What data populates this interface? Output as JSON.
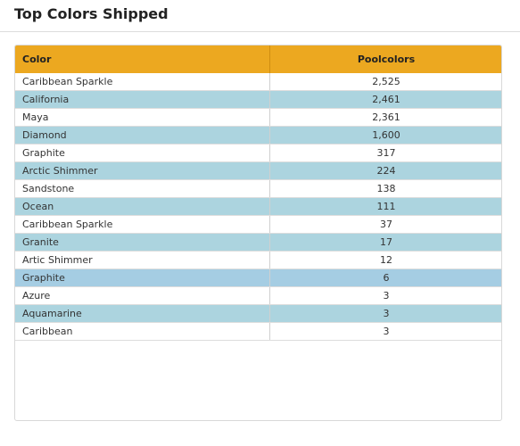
{
  "header": {
    "title": "Top Colors Shipped"
  },
  "table": {
    "columns": [
      "Color",
      "Poolcolors"
    ],
    "rows": [
      [
        "Caribbean Sparkle",
        "2,525"
      ],
      [
        "California",
        "2,461"
      ],
      [
        "Maya",
        "2,361"
      ],
      [
        "Diamond",
        "1,600"
      ],
      [
        "Graphite",
        "317"
      ],
      [
        "Arctic Shimmer",
        "224"
      ],
      [
        "Sandstone",
        "138"
      ],
      [
        "Ocean",
        "111"
      ],
      [
        "Caribbean Sparkle",
        "37"
      ],
      [
        "Granite",
        "17"
      ],
      [
        "Artic Shimmer",
        "12"
      ],
      [
        "Graphite",
        "6"
      ],
      [
        "Azure",
        "3"
      ],
      [
        "Aquamarine",
        "3"
      ],
      [
        "Caribbean",
        "3"
      ]
    ]
  }
}
